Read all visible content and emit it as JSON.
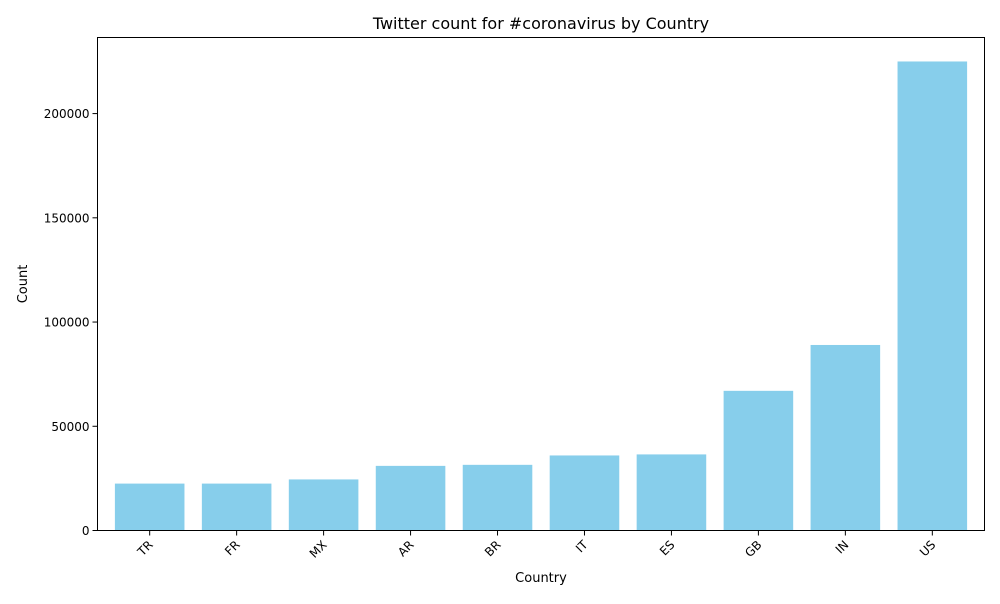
{
  "chart_data": {
    "type": "bar",
    "title": "Twitter count for #coronavirus by Country",
    "xlabel": "Country",
    "ylabel": "Count",
    "categories": [
      "TR",
      "FR",
      "MX",
      "AR",
      "BR",
      "IT",
      "ES",
      "GB",
      "IN",
      "US"
    ],
    "values": [
      22500,
      22500,
      24500,
      31000,
      31500,
      36000,
      36500,
      67000,
      89000,
      225000
    ],
    "ylim": [
      0,
      236500
    ],
    "yticks": [
      0,
      50000,
      100000,
      150000,
      200000
    ],
    "bar_color": "#87ceeb",
    "grid": false,
    "legend": "none"
  }
}
